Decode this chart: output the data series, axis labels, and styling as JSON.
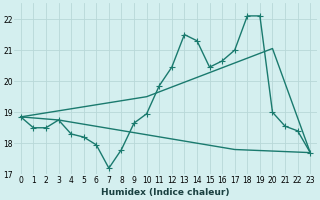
{
  "xlabel": "Humidex (Indice chaleur)",
  "bg_color": "#d4efef",
  "grid_color": "#b8d8d8",
  "line_color": "#1a7a6e",
  "xlim": [
    -0.5,
    23.5
  ],
  "ylim": [
    17,
    22.5
  ],
  "yticks": [
    17,
    18,
    19,
    20,
    21,
    22
  ],
  "xticks": [
    0,
    1,
    2,
    3,
    4,
    5,
    6,
    7,
    8,
    9,
    10,
    11,
    12,
    13,
    14,
    15,
    16,
    17,
    18,
    19,
    20,
    21,
    22,
    23
  ],
  "line1_x": [
    0,
    1,
    2,
    3,
    4,
    5,
    6,
    7,
    8,
    9,
    10,
    11,
    12,
    13,
    14,
    15,
    16,
    17,
    18,
    19,
    20,
    21,
    22,
    23
  ],
  "line1_y": [
    18.85,
    18.5,
    18.5,
    18.75,
    18.3,
    18.2,
    17.95,
    17.2,
    17.8,
    18.65,
    18.95,
    19.85,
    20.45,
    21.5,
    21.3,
    20.45,
    20.65,
    21.0,
    22.1,
    22.1,
    19.0,
    18.55,
    18.4,
    17.7
  ],
  "line2_x": [
    0,
    10,
    20,
    23
  ],
  "line2_y": [
    18.85,
    19.5,
    21.05,
    17.7
  ],
  "line3_x": [
    0,
    3,
    17,
    23
  ],
  "line3_y": [
    18.85,
    18.75,
    17.8,
    17.7
  ],
  "marker_size": 2.5,
  "line_width": 1.0
}
